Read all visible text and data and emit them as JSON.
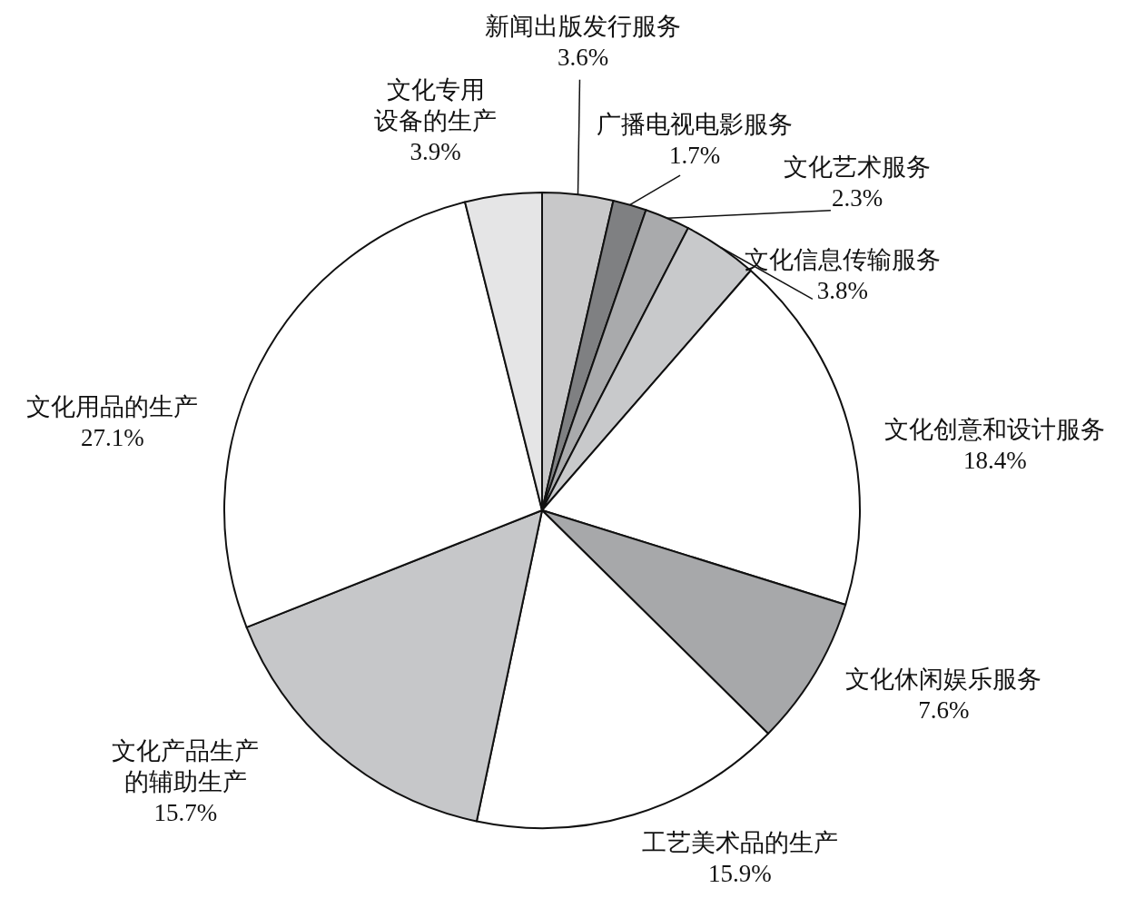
{
  "chart_data": {
    "type": "pie",
    "categories": [
      "新闻出版发行服务",
      "广播电视电影服务",
      "文化艺术服务",
      "文化信息传输服务",
      "文化创意和设计服务",
      "文化休闲娱乐服务",
      "工艺美术品的生产",
      "文化产品生产的辅助生产",
      "文化用品的生产",
      "文化专用设备的生产"
    ],
    "values": [
      3.6,
      1.7,
      2.3,
      3.8,
      18.4,
      7.6,
      15.9,
      15.7,
      27.1,
      3.9
    ],
    "value_labels": [
      "3.6%",
      "1.7%",
      "2.3%",
      "3.8%",
      "18.4%",
      "7.6%",
      "15.9%",
      "15.7%",
      "27.1%",
      "3.9%"
    ],
    "colors": [
      "#c8c8c9",
      "#7f8082",
      "#a9aaac",
      "#c8c9cb",
      "#ffffff",
      "#a7a8aa",
      "#ffffff",
      "#c6c7c9",
      "#ffffff",
      "#e5e5e6"
    ]
  }
}
